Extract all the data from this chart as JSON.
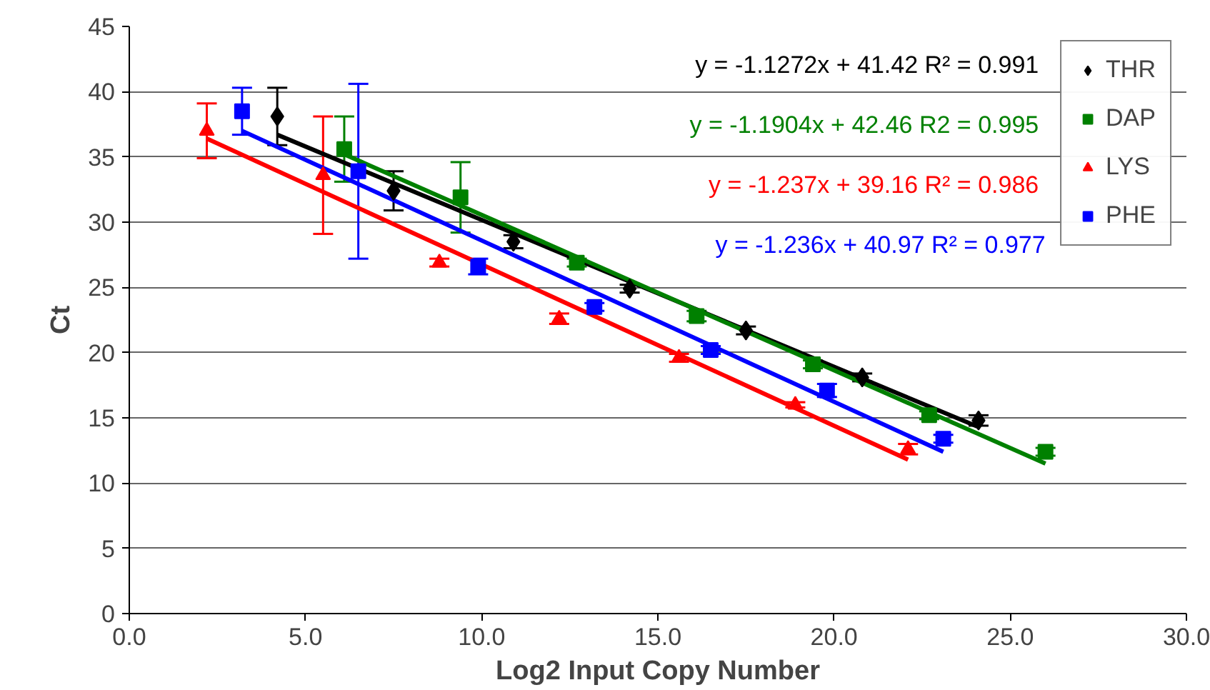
{
  "chart_data": {
    "type": "scatter",
    "xlabel": "Log2 Input Copy Number",
    "ylabel": "Ct",
    "xlim": [
      0,
      30
    ],
    "ylim": [
      0,
      45
    ],
    "xticks": [
      {
        "value": 0,
        "label": "0.0"
      },
      {
        "value": 5,
        "label": "5.0"
      },
      {
        "value": 10,
        "label": "10.0"
      },
      {
        "value": 15,
        "label": "15.0"
      },
      {
        "value": 20,
        "label": "20.0"
      },
      {
        "value": 25,
        "label": "25.0"
      },
      {
        "value": 30,
        "label": "30.0"
      }
    ],
    "yticks": [
      0,
      5,
      10,
      15,
      20,
      25,
      30,
      35,
      40,
      45
    ],
    "grid": "y",
    "legend": "top right",
    "series": [
      {
        "name": "THR",
        "color": "#000000",
        "marker": "diamond",
        "x": [
          4.2,
          7.5,
          10.9,
          14.2,
          17.5,
          20.8,
          24.1
        ],
        "values": [
          38.1,
          32.4,
          28.5,
          24.9,
          21.7,
          18.1,
          14.8
        ],
        "errors": [
          2.2,
          1.5,
          0.5,
          0.3,
          0.3,
          0.3,
          0.4
        ]
      },
      {
        "name": "DAP",
        "color": "#008000",
        "marker": "square",
        "x": [
          6.1,
          9.4,
          12.7,
          16.1,
          19.4,
          22.7,
          26.0
        ],
        "values": [
          35.6,
          31.9,
          26.9,
          22.8,
          19.1,
          15.2,
          12.4
        ],
        "errors": [
          2.5,
          2.7,
          0.3,
          0.4,
          0.3,
          0.3,
          0.3
        ]
      },
      {
        "name": "LYS",
        "color": "#ff0000",
        "marker": "triangle",
        "x": [
          2.2,
          5.5,
          8.8,
          12.2,
          15.6,
          18.9,
          22.1
        ],
        "values": [
          37.0,
          33.6,
          26.9,
          22.6,
          19.6,
          16.0,
          12.6
        ],
        "errors": [
          2.1,
          4.5,
          0.3,
          0.4,
          0.3,
          0.2,
          0.4
        ]
      },
      {
        "name": "PHE",
        "color": "#0000ff",
        "marker": "square",
        "x": [
          3.2,
          6.5,
          9.9,
          13.2,
          16.5,
          19.8,
          23.1
        ],
        "values": [
          38.5,
          33.9,
          26.6,
          23.5,
          20.2,
          17.1,
          13.4
        ],
        "errors": [
          1.8,
          6.7,
          0.6,
          0.3,
          0.3,
          0.5,
          0.3
        ]
      },
      {
        "type": "line",
        "color": "#000000",
        "x": [
          4.2,
          24.1
        ],
        "values": [
          36.7,
          14.3
        ]
      },
      {
        "type": "line",
        "color": "#008000",
        "x": [
          6.1,
          26.0
        ],
        "values": [
          35.2,
          11.5
        ]
      },
      {
        "type": "line",
        "color": "#ff0000",
        "x": [
          2.2,
          22.1
        ],
        "values": [
          36.4,
          11.8
        ]
      },
      {
        "type": "line",
        "color": "#0000ff",
        "x": [
          3.2,
          23.1
        ],
        "values": [
          37.0,
          12.4
        ]
      }
    ],
    "annotations": [
      "y = -1.1272x + 41.42  R² = 0.991",
      "y = -1.1904x + 42.46  R2 = 0.995",
      "y = -1.237x + 39.16  R² = 0.986",
      "y = -1.236x + 40.97 R² = 0.977"
    ]
  }
}
